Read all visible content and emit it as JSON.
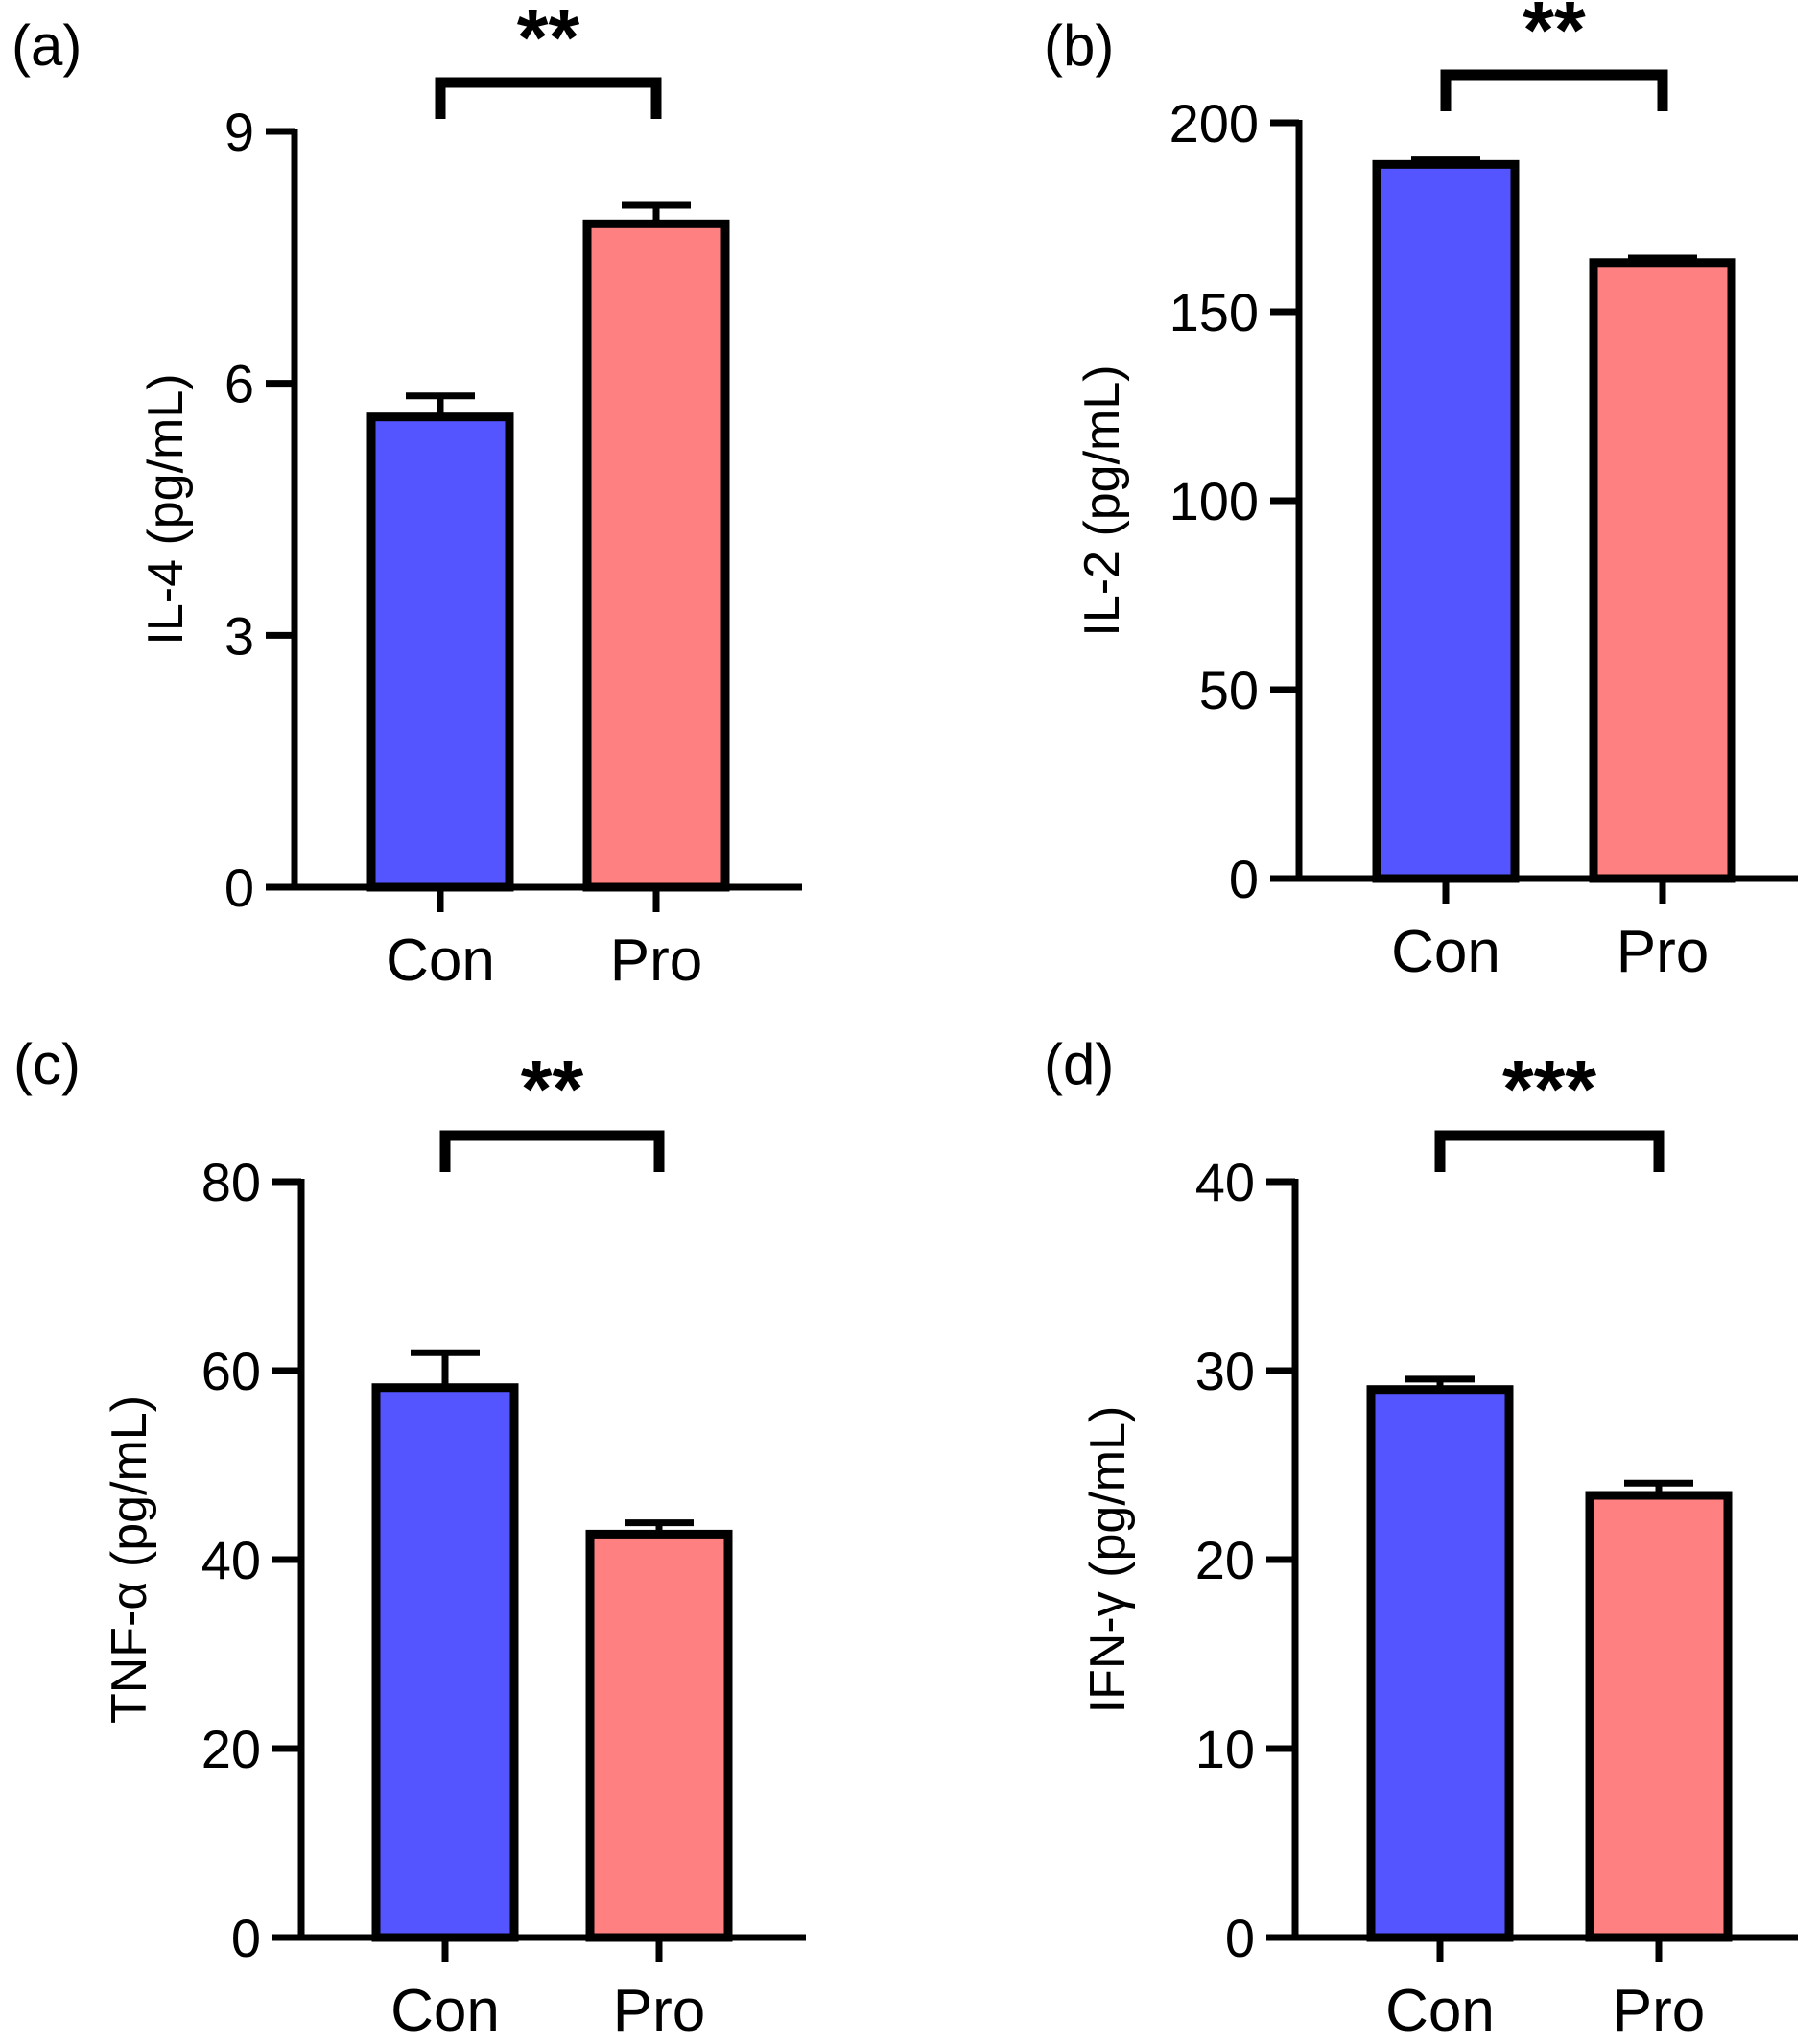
{
  "colors": {
    "con": "#5555ff",
    "pro": "#ff8080",
    "ink": "#000000"
  },
  "chart_data": [
    {
      "type": "bar",
      "panel_label": "(a)",
      "categories": [
        "Con",
        "Pro"
      ],
      "values": [
        5.6,
        7.9
      ],
      "errors": [
        0.25,
        0.22
      ],
      "ylabel": "IL-4 (pg/mL)",
      "ylim": [
        0,
        9
      ],
      "yticks": [
        0,
        3,
        6,
        9
      ],
      "significance": "**",
      "grid": false,
      "legend": "none"
    },
    {
      "type": "bar",
      "panel_label": "(b)",
      "categories": [
        "Con",
        "Pro"
      ],
      "values": [
        189,
        163
      ],
      "errors": [
        1.2,
        1.2
      ],
      "ylabel": "IL-2 (pg/mL)",
      "ylim": [
        0,
        200
      ],
      "yticks": [
        0,
        50,
        100,
        150,
        200
      ],
      "significance": "**",
      "grid": false,
      "legend": "none"
    },
    {
      "type": "bar",
      "panel_label": "(c)",
      "categories": [
        "Con",
        "Pro"
      ],
      "values": [
        58.2,
        42.7
      ],
      "errors": [
        3.7,
        1.2
      ],
      "ylabel": "TNF-α (pg/mL)",
      "ylim": [
        0,
        80
      ],
      "yticks": [
        0,
        20,
        40,
        60,
        80
      ],
      "significance": "**",
      "grid": false,
      "legend": "none"
    },
    {
      "type": "bar",
      "panel_label": "(d)",
      "categories": [
        "Con",
        "Pro"
      ],
      "values": [
        29.0,
        23.4
      ],
      "errors": [
        0.55,
        0.65
      ],
      "ylabel": "IFN-γ (pg/mL)",
      "ylim": [
        0,
        40
      ],
      "yticks": [
        0,
        10,
        20,
        30,
        40
      ],
      "significance": "***",
      "grid": false,
      "legend": "none"
    }
  ]
}
